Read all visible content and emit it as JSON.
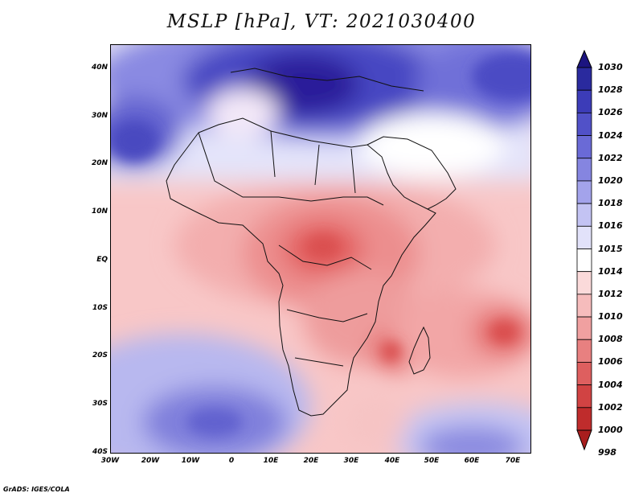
{
  "title": "MSLP [hPa], VT: 2021030400",
  "credit": "GrADS: IGES/COLA",
  "lat_labels": [
    "40N",
    "30N",
    "20N",
    "10N",
    "EQ",
    "10S",
    "20S",
    "30S",
    "40S"
  ],
  "lon_labels": [
    "30W",
    "20W",
    "10W",
    "0",
    "10E",
    "20E",
    "30E",
    "40E",
    "50E",
    "60E",
    "70E"
  ],
  "colorbar": {
    "labels": [
      "1030",
      "1028",
      "1026",
      "1024",
      "1022",
      "1020",
      "1018",
      "1016",
      "1015",
      "1014",
      "1012",
      "1010",
      "1008",
      "1006",
      "1004",
      "1002",
      "1000",
      "998"
    ],
    "colors": [
      "#1c1480",
      "#2a2a9e",
      "#3c3cb8",
      "#5151c8",
      "#6a6ad6",
      "#8585e0",
      "#a3a3eb",
      "#c3c3f3",
      "#e2e2fa",
      "#ffffff",
      "#fbdada",
      "#f6bcbc",
      "#f0a0a0",
      "#e88080",
      "#de5f5f",
      "#d14343",
      "#bf2c2c",
      "#a81e1e"
    ]
  },
  "colors": {
    "high_core": "#2b1f9a",
    "high": "#5d5dd0",
    "high_light": "#a8a8ec",
    "neutral": "#ffffff",
    "low_light": "#f9cfcf",
    "low": "#ee9898",
    "low_core": "#d94c4c"
  }
}
